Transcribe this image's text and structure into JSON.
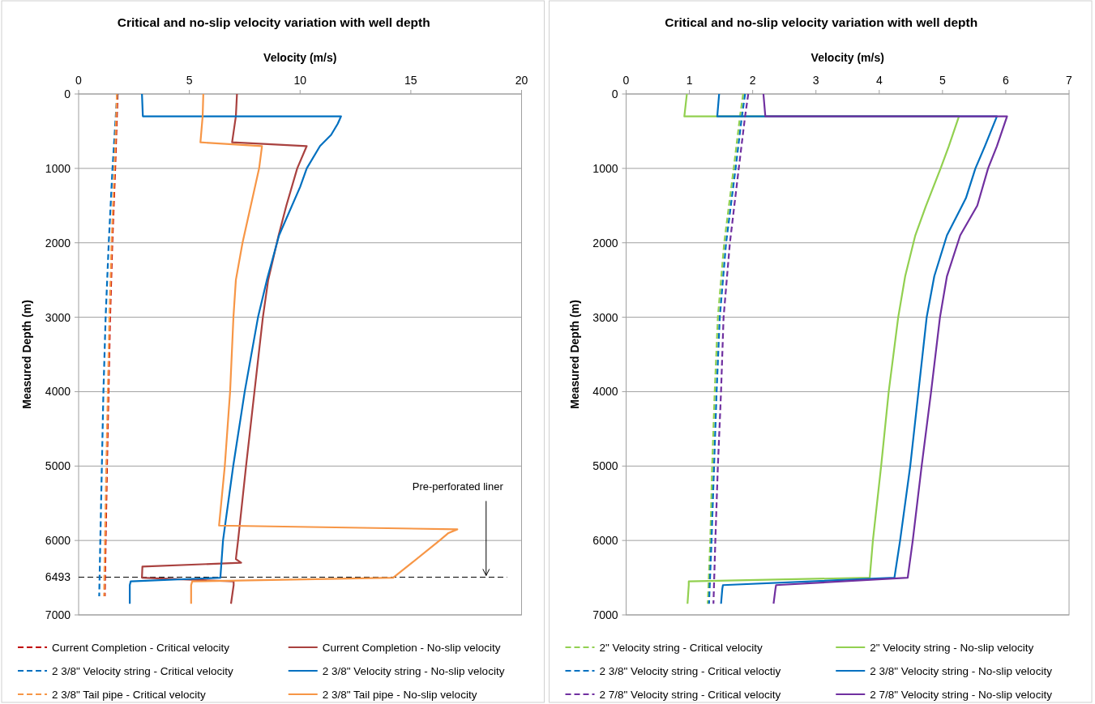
{
  "chart_data": [
    {
      "type": "line",
      "title": "Critical and no-slip velocity variation with well depth",
      "xlabel": "Velocity (m/s)",
      "ylabel": "Measured Depth (m)",
      "xlim": [
        0,
        20
      ],
      "xticks": [
        0,
        5,
        10,
        15,
        20
      ],
      "ylim": [
        7000,
        0
      ],
      "yticks": [
        0,
        1000,
        2000,
        3000,
        4000,
        5000,
        6000,
        7000
      ],
      "grid": "y",
      "legend": "bottom",
      "ref_lines": [
        {
          "axis": "y",
          "value": 6493,
          "label": "6493",
          "line_style": "dashed",
          "color": "#000000"
        }
      ],
      "annotations": [
        {
          "text": "Pre-perforated liner",
          "x": 18.4,
          "y": 6493
        }
      ],
      "series": [
        {
          "name": "Current Completion - Critical velocity",
          "color": "#c00000",
          "line_style": "dashed",
          "x": [
            1.76,
            1.65,
            1.52,
            1.42,
            1.35,
            1.28,
            1.22,
            1.18
          ],
          "values": [
            0,
            1000,
            2000,
            3000,
            4000,
            5000,
            6000,
            6750
          ]
        },
        {
          "name": "Current Completion - No-slip velocity",
          "color": "#a9413f",
          "line_style": "solid",
          "x": [
            7.15,
            7.1,
            6.93,
            10.3,
            9.87,
            9.38,
            9.03,
            8.56,
            8.32,
            7.94,
            7.56,
            7.2,
            7.1,
            7.34,
            2.88,
            2.86,
            7.0,
            7.0,
            6.88
          ],
          "values": [
            0,
            300,
            650,
            700,
            1000,
            1500,
            1900,
            2500,
            3000,
            4000,
            5000,
            6000,
            6250,
            6300,
            6350,
            6500,
            6550,
            6600,
            6850
          ]
        },
        {
          "name": "2 3/8\" Velocity string - Critical velocity",
          "color": "#0070c0",
          "line_style": "dashed",
          "x": [
            1.74,
            1.53,
            1.36,
            1.22,
            1.12,
            1.05,
            0.98,
            0.93
          ],
          "values": [
            0,
            1000,
            2000,
            3000,
            4000,
            5000,
            6000,
            6750
          ]
        },
        {
          "name": "2 3/8\" Velocity string - No-slip velocity",
          "color": "#0070c0",
          "line_style": "solid",
          "x": [
            2.86,
            2.9,
            11.85,
            11.7,
            11.4,
            10.9,
            10.3,
            10.0,
            9.05,
            8.5,
            8.1,
            7.5,
            6.98,
            6.52,
            6.4,
            2.35,
            2.31,
            2.31
          ],
          "values": [
            0,
            300,
            300,
            400,
            550,
            700,
            1000,
            1250,
            1900,
            2500,
            3000,
            4000,
            5000,
            6000,
            6500,
            6550,
            6600,
            6850
          ]
        },
        {
          "name": "2 3/8\" Tail pipe - Critical velocity",
          "color": "#f79646",
          "line_style": "dashed",
          "x": [
            1.73,
            1.62,
            1.49,
            1.39,
            1.32,
            1.25,
            1.19,
            1.15
          ],
          "values": [
            0,
            1000,
            2000,
            3000,
            4000,
            5000,
            6000,
            6750
          ]
        },
        {
          "name": "2 3/8\" Tail pipe - No-slip velocity",
          "color": "#f79646",
          "line_style": "solid",
          "x": [
            5.63,
            5.6,
            5.5,
            8.28,
            8.15,
            7.4,
            7.1,
            6.99,
            6.84,
            6.6,
            6.34,
            17.1,
            16.7,
            16.3,
            15.05,
            14.2,
            5.13,
            5.08,
            5.08
          ],
          "values": [
            0,
            300,
            650,
            700,
            1000,
            2000,
            2500,
            3000,
            4000,
            5000,
            5800,
            5850,
            5900,
            6000,
            6300,
            6500,
            6550,
            6600,
            6850
          ]
        }
      ]
    },
    {
      "type": "line",
      "title": "Critical and no-slip velocity variation with well depth",
      "xlabel": "Velocity (m/s)",
      "ylabel": "Measured Depth (m)",
      "xlim": [
        0,
        7
      ],
      "xticks": [
        0,
        1,
        2,
        3,
        4,
        5,
        6,
        7
      ],
      "ylim": [
        7000,
        0
      ],
      "yticks": [
        0,
        1000,
        2000,
        3000,
        4000,
        5000,
        6000,
        7000
      ],
      "grid": "y",
      "legend": "bottom",
      "series": [
        {
          "name": "2\" Velocity string - Critical velocity",
          "color": "#92d050",
          "line_style": "dashed",
          "x": [
            1.85,
            1.8,
            1.7,
            1.55,
            1.45,
            1.4,
            1.36,
            1.33,
            1.29
          ],
          "values": [
            0,
            300,
            1000,
            2000,
            3000,
            4000,
            5000,
            6000,
            6850
          ]
        },
        {
          "name": "2\" Velocity string - No-slip velocity",
          "color": "#92d050",
          "line_style": "solid",
          "x": [
            0.96,
            0.92,
            5.26,
            5.1,
            4.97,
            4.74,
            4.57,
            4.41,
            4.3,
            4.15,
            4.03,
            3.9,
            3.85,
            0.99,
            0.99,
            0.97
          ],
          "values": [
            0,
            300,
            300,
            700,
            1000,
            1500,
            1900,
            2450,
            3000,
            4000,
            5000,
            6000,
            6500,
            6550,
            6600,
            6850
          ]
        },
        {
          "name": "2 3/8\" Velocity string - Critical veloctiy",
          "color": "#0070c0",
          "line_style": "dashed",
          "x": [
            1.88,
            1.83,
            1.73,
            1.58,
            1.48,
            1.43,
            1.39,
            1.35,
            1.31
          ],
          "values": [
            0,
            300,
            1000,
            2000,
            3000,
            4000,
            5000,
            6000,
            6850
          ]
        },
        {
          "name": "2 3/8\" Velocity string - No-slip velocity",
          "color": "#0070c0",
          "line_style": "solid",
          "x": [
            1.47,
            1.44,
            5.86,
            5.67,
            5.52,
            5.37,
            5.07,
            4.87,
            4.75,
            4.62,
            4.49,
            4.33,
            4.24,
            1.53,
            1.52,
            1.5
          ],
          "values": [
            0,
            300,
            300,
            700,
            1000,
            1400,
            1900,
            2450,
            3000,
            4000,
            5000,
            6000,
            6500,
            6600,
            6650,
            6850
          ]
        },
        {
          "name": "2 7/8\" Velocity string - Critical velocity",
          "color": "#7030a0",
          "line_style": "dashed",
          "x": [
            1.93,
            1.88,
            1.78,
            1.64,
            1.54,
            1.5,
            1.45,
            1.41,
            1.38
          ],
          "values": [
            0,
            300,
            1000,
            2000,
            3000,
            4000,
            5000,
            6000,
            6850
          ]
        },
        {
          "name": "2 7/8\" Velocity string - No-slip velocity",
          "color": "#7030a0",
          "line_style": "solid",
          "x": [
            2.17,
            2.2,
            6.02,
            5.86,
            5.72,
            5.55,
            5.28,
            5.07,
            4.96,
            4.82,
            4.67,
            4.53,
            4.45,
            2.37,
            2.36,
            2.33
          ],
          "values": [
            0,
            300,
            300,
            700,
            1000,
            1500,
            1900,
            2450,
            3000,
            4000,
            5000,
            6000,
            6500,
            6600,
            6650,
            6850
          ]
        }
      ]
    }
  ]
}
